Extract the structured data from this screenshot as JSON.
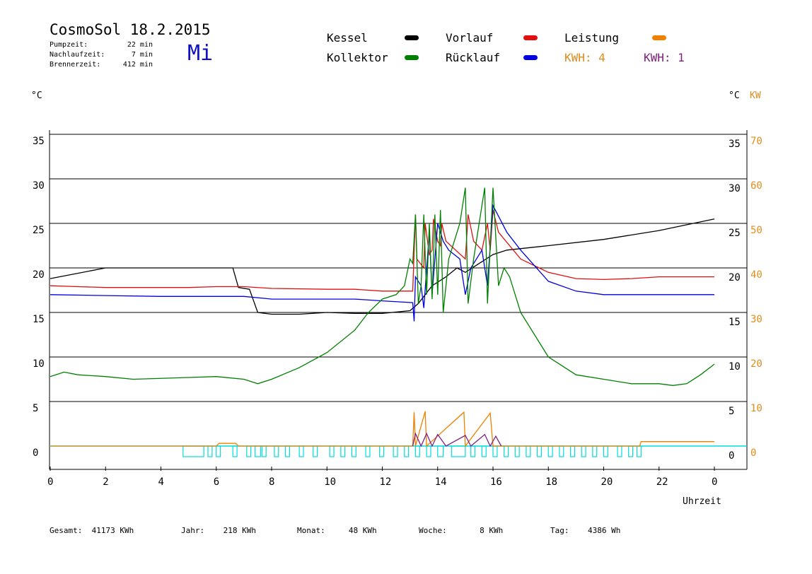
{
  "header": {
    "title": "CosmoSol 18.2.2015",
    "day": "Mi",
    "stats": [
      {
        "label": "Pumpzeit:",
        "value": "22 min"
      },
      {
        "label": "Nachlaufzeit:",
        "value": "7 min"
      },
      {
        "label": "Brennerzeit:",
        "value": "412 min"
      }
    ]
  },
  "legend": {
    "kessel": {
      "label": "Kessel",
      "color": "#000000"
    },
    "kollektor": {
      "label": "Kollektor",
      "color": "#008000"
    },
    "vorlauf": {
      "label": "Vorlauf",
      "color": "#e01010"
    },
    "ruecklauf": {
      "label": "Rücklauf",
      "color": "#0000e0"
    },
    "leistung": {
      "label": "Leistung",
      "color": "#f08000"
    },
    "kwh1": {
      "label": "KWH: 4",
      "color": "#e08c1a"
    },
    "kwh2": {
      "label": "KWH: 1",
      "color": "#802080"
    }
  },
  "axes": {
    "left_unit": "°C",
    "right_unit": "°C",
    "right_unit2": "KW",
    "x_label": "Uhrzeit"
  },
  "footer": {
    "gesamt_label": "Gesamt:",
    "gesamt_value": "41173 KWh",
    "jahr_label": "Jahr:",
    "jahr_value": "218 KWh",
    "monat_label": "Monat:",
    "monat_value": "48 KWh",
    "woche_label": "Woche:",
    "woche_value": "8 KWh",
    "tag_label": "Tag:",
    "tag_value": "4386 Wh"
  },
  "chart_data": {
    "type": "line",
    "x_ticks": [
      "0",
      "2",
      "4",
      "6",
      "8",
      "10",
      "12",
      "14",
      "16",
      "18",
      "20",
      "22",
      "0"
    ],
    "y_ticks": [
      0,
      5,
      10,
      15,
      20,
      25,
      30,
      35
    ],
    "y2_ticks": [
      0,
      10,
      20,
      30,
      40,
      50,
      60,
      70
    ],
    "ylim": [
      -2.5,
      35
    ],
    "xlim": [
      0,
      24
    ],
    "grid": true,
    "series": [
      {
        "key": "kessel",
        "color": "#000000",
        "points": [
          [
            0,
            18.8
          ],
          [
            2,
            20
          ],
          [
            6.6,
            20
          ],
          [
            6.8,
            17.8
          ],
          [
            7.2,
            17.6
          ],
          [
            7.5,
            15
          ],
          [
            8,
            14.8
          ],
          [
            9,
            14.8
          ],
          [
            10,
            15
          ],
          [
            11,
            14.9
          ],
          [
            12,
            14.9
          ],
          [
            13,
            15.2
          ],
          [
            13.3,
            16
          ],
          [
            13.8,
            18
          ],
          [
            14.3,
            19
          ],
          [
            14.7,
            20
          ],
          [
            15,
            19.5
          ],
          [
            15.5,
            20.5
          ],
          [
            16,
            21.5
          ],
          [
            16.5,
            22
          ],
          [
            18,
            22.5
          ],
          [
            20,
            23.2
          ],
          [
            22,
            24.2
          ],
          [
            24,
            25.5
          ]
        ]
      },
      {
        "key": "vorlauf",
        "color": "#e01010",
        "points": [
          [
            0,
            18
          ],
          [
            1,
            17.9
          ],
          [
            2,
            17.8
          ],
          [
            5,
            17.8
          ],
          [
            6,
            17.9
          ],
          [
            7,
            17.9
          ],
          [
            8,
            17.7
          ],
          [
            10,
            17.6
          ],
          [
            11,
            17.6
          ],
          [
            12,
            17.4
          ],
          [
            13.1,
            17.4
          ],
          [
            13.2,
            26
          ],
          [
            13.25,
            21
          ],
          [
            13.5,
            20
          ],
          [
            13.55,
            25
          ],
          [
            13.7,
            21.5
          ],
          [
            13.8,
            22
          ],
          [
            13.85,
            25.5
          ],
          [
            14,
            23
          ],
          [
            14.1,
            22.5
          ],
          [
            14.15,
            25
          ],
          [
            14.3,
            23
          ],
          [
            15,
            21
          ],
          [
            15.1,
            26
          ],
          [
            15.3,
            23
          ],
          [
            15.6,
            22
          ],
          [
            15.8,
            25
          ],
          [
            15.9,
            22
          ],
          [
            16.0,
            26.5
          ],
          [
            16.2,
            24
          ],
          [
            17,
            21
          ],
          [
            18,
            19.5
          ],
          [
            19,
            18.8
          ],
          [
            20,
            18.7
          ],
          [
            21,
            18.8
          ],
          [
            22,
            19
          ],
          [
            24,
            19
          ]
        ]
      },
      {
        "key": "ruecklauf",
        "color": "#0000e0",
        "points": [
          [
            0,
            17
          ],
          [
            2,
            16.9
          ],
          [
            4,
            16.8
          ],
          [
            6,
            16.8
          ],
          [
            7,
            16.8
          ],
          [
            8,
            16.5
          ],
          [
            9,
            16.5
          ],
          [
            10,
            16.5
          ],
          [
            11,
            16.5
          ],
          [
            12,
            16.3
          ],
          [
            13.1,
            16.1
          ],
          [
            13.15,
            14
          ],
          [
            13.2,
            19
          ],
          [
            13.4,
            18
          ],
          [
            13.5,
            15.5
          ],
          [
            13.7,
            24
          ],
          [
            13.8,
            17
          ],
          [
            14.0,
            25
          ],
          [
            14.2,
            23
          ],
          [
            14.4,
            22
          ],
          [
            14.8,
            21
          ],
          [
            15,
            17
          ],
          [
            15.2,
            20
          ],
          [
            15.6,
            22
          ],
          [
            15.8,
            18
          ],
          [
            16.0,
            27
          ],
          [
            16.5,
            24
          ],
          [
            17,
            22
          ],
          [
            18,
            18.5
          ],
          [
            19,
            17.4
          ],
          [
            20,
            17
          ],
          [
            22,
            17
          ],
          [
            24,
            17
          ]
        ]
      },
      {
        "key": "kollektor",
        "color": "#008000",
        "points": [
          [
            0,
            7.8
          ],
          [
            0.5,
            8.3
          ],
          [
            1,
            8
          ],
          [
            2,
            7.8
          ],
          [
            3,
            7.5
          ],
          [
            5,
            7.7
          ],
          [
            6,
            7.8
          ],
          [
            7,
            7.5
          ],
          [
            7.5,
            7
          ],
          [
            8,
            7.5
          ],
          [
            9,
            8.8
          ],
          [
            10,
            10.5
          ],
          [
            11,
            13
          ],
          [
            11.5,
            15
          ],
          [
            12,
            16.5
          ],
          [
            12.5,
            17
          ],
          [
            12.8,
            18
          ],
          [
            13,
            21
          ],
          [
            13.1,
            20.5
          ],
          [
            13.2,
            26
          ],
          [
            13.3,
            16
          ],
          [
            13.4,
            18
          ],
          [
            13.5,
            26
          ],
          [
            13.6,
            17
          ],
          [
            13.7,
            25
          ],
          [
            13.8,
            16.5
          ],
          [
            13.9,
            26
          ],
          [
            14,
            17
          ],
          [
            14.1,
            26.5
          ],
          [
            14.2,
            15
          ],
          [
            14.4,
            21
          ],
          [
            14.8,
            25
          ],
          [
            15,
            29
          ],
          [
            15.1,
            16
          ],
          [
            15.3,
            21
          ],
          [
            15.5,
            25
          ],
          [
            15.7,
            29
          ],
          [
            15.8,
            16
          ],
          [
            16,
            29
          ],
          [
            16.2,
            18
          ],
          [
            16.4,
            20
          ],
          [
            16.6,
            19
          ],
          [
            17,
            15
          ],
          [
            18,
            10
          ],
          [
            19,
            8
          ],
          [
            20,
            7.5
          ],
          [
            21,
            7
          ],
          [
            22,
            7
          ],
          [
            22.5,
            6.8
          ],
          [
            23,
            7
          ],
          [
            23.5,
            8
          ],
          [
            24,
            9.2
          ]
        ]
      },
      {
        "key": "leistung",
        "color": "#f08000",
        "points": [
          [
            0,
            0
          ],
          [
            6,
            0
          ],
          [
            6.1,
            0.3
          ],
          [
            6.7,
            0.3
          ],
          [
            6.8,
            0
          ],
          [
            13.1,
            0
          ],
          [
            13.15,
            3.8
          ],
          [
            13.2,
            0
          ],
          [
            13.55,
            3.9
          ],
          [
            13.6,
            0
          ],
          [
            14.95,
            3.8
          ],
          [
            15.0,
            0
          ],
          [
            15.9,
            3.7
          ],
          [
            16.0,
            0
          ],
          [
            21.3,
            0
          ],
          [
            21.35,
            0.5
          ],
          [
            24,
            0.5
          ]
        ]
      },
      {
        "key": "kwh2",
        "color": "#802080",
        "points": [
          [
            13.1,
            0
          ],
          [
            13.2,
            1.4
          ],
          [
            13.4,
            0
          ],
          [
            13.6,
            1.4
          ],
          [
            13.8,
            0
          ],
          [
            14.0,
            1.3
          ],
          [
            14.3,
            0
          ],
          [
            15.0,
            1.2
          ],
          [
            15.2,
            0
          ],
          [
            15.7,
            1.3
          ],
          [
            15.9,
            0
          ],
          [
            16.1,
            1.1
          ],
          [
            16.3,
            0
          ]
        ]
      }
    ]
  }
}
